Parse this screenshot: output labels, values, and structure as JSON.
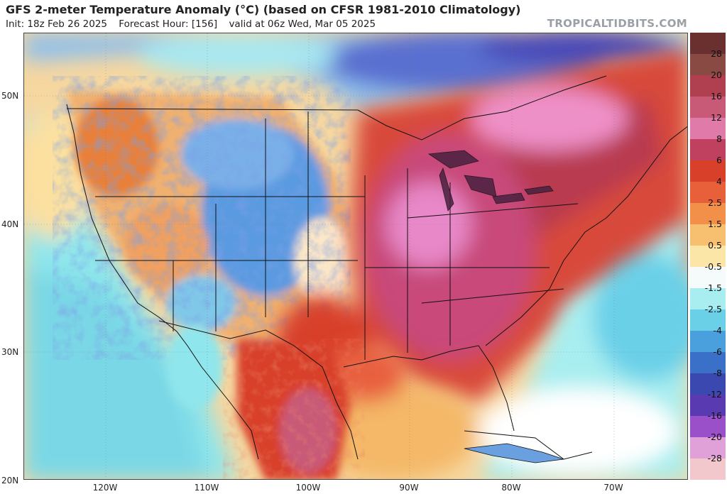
{
  "header": {
    "title": "GFS 2-meter Temperature Anomaly (°C) (based on CFSR 1981-2010 Climatology)",
    "init": "Init: 18z Feb 26 2025",
    "forecast_hour": "Forecast Hour: [156]",
    "valid": "valid at 06z Wed, Mar 05 2025",
    "brand": "TROPICALTIDBITS.COM"
  },
  "axes": {
    "lat_labels": [
      "50N",
      "40N",
      "30N",
      "20N"
    ],
    "lon_labels": [
      "120W",
      "110W",
      "100W",
      "90W",
      "80W",
      "70W"
    ]
  },
  "colorbar": {
    "labels": [
      "28",
      "20",
      "16",
      "12",
      "8",
      "6",
      "4",
      "2.5",
      "1.5",
      "0.5",
      "-0.5",
      "-1.5",
      "-2.5",
      "-4",
      "-6",
      "-8",
      "-12",
      "-16",
      "-20",
      "-28"
    ],
    "colors": [
      "#8a4a44",
      "#b04050",
      "#c85a78",
      "#e07aa8",
      "#c04060",
      "#d8402a",
      "#e8603a",
      "#f2904a",
      "#f6c070",
      "#fbe6a8",
      "#f5fbfb",
      "#a8eef0",
      "#6ad0e8",
      "#4aa0dc",
      "#3a70c8",
      "#3a48b0",
      "#5a3ab0",
      "#9a50c8",
      "#e0a0d8",
      "#f2c8cc"
    ],
    "top_color": "#6a3030"
  }
}
